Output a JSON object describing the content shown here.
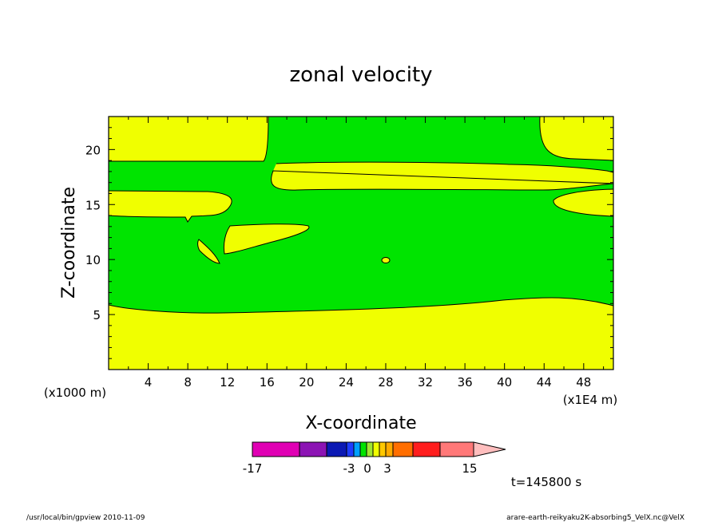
{
  "chart_data": {
    "type": "heatmap",
    "title": "zonal velocity",
    "xlabel": "X-coordinate",
    "ylabel": "Z-coordinate",
    "x_unit_note": "(x1E4 m)",
    "y_unit_note": "(x1000 m)",
    "x_ticks": [
      "4",
      "8",
      "12",
      "16",
      "20",
      "24",
      "28",
      "32",
      "36",
      "40",
      "44",
      "48"
    ],
    "y_ticks": [
      "5",
      "10",
      "15",
      "20"
    ],
    "xlim": [
      0,
      51
    ],
    "ylim": [
      0,
      23
    ],
    "x_tick_values": [
      4,
      8,
      12,
      16,
      20,
      24,
      28,
      32,
      36,
      40,
      44,
      48
    ],
    "y_tick_values": [
      5,
      10,
      15,
      20
    ],
    "field_levels": [
      {
        "range": "-3 to 0",
        "color": "#00e400"
      },
      {
        "range": "0 to 3",
        "color": "#f0ff00"
      }
    ],
    "colorbar": {
      "labels": [
        "-17",
        "-3",
        "0",
        "3",
        "15"
      ],
      "bins": [
        {
          "color": "#e000b4",
          "w": 59
        },
        {
          "color": "#8c14b4",
          "w": 34
        },
        {
          "color": "#0b19b4",
          "w": 25
        },
        {
          "color": "#1e3cff",
          "w": 9
        },
        {
          "color": "#00a0ff",
          "w": 8
        },
        {
          "color": "#00e400",
          "w": 8
        },
        {
          "color": "#a0e632",
          "w": 8
        },
        {
          "color": "#f0ff00",
          "w": 8
        },
        {
          "color": "#ffc800",
          "w": 8
        },
        {
          "color": "#ffaa00",
          "w": 9
        },
        {
          "color": "#ff6e00",
          "w": 25
        },
        {
          "color": "#ff1e1e",
          "w": 34
        },
        {
          "color": "#ff7878",
          "w": 42
        }
      ],
      "arrow_color": "#ffbebe"
    },
    "time_label": "t=145800 s",
    "grid": false
  },
  "footer": {
    "left": "/usr/local/bin/gpview  2010-11-09",
    "right": "arare-earth-reikyaku2K-absorbing5_VelX.nc@VelX"
  }
}
